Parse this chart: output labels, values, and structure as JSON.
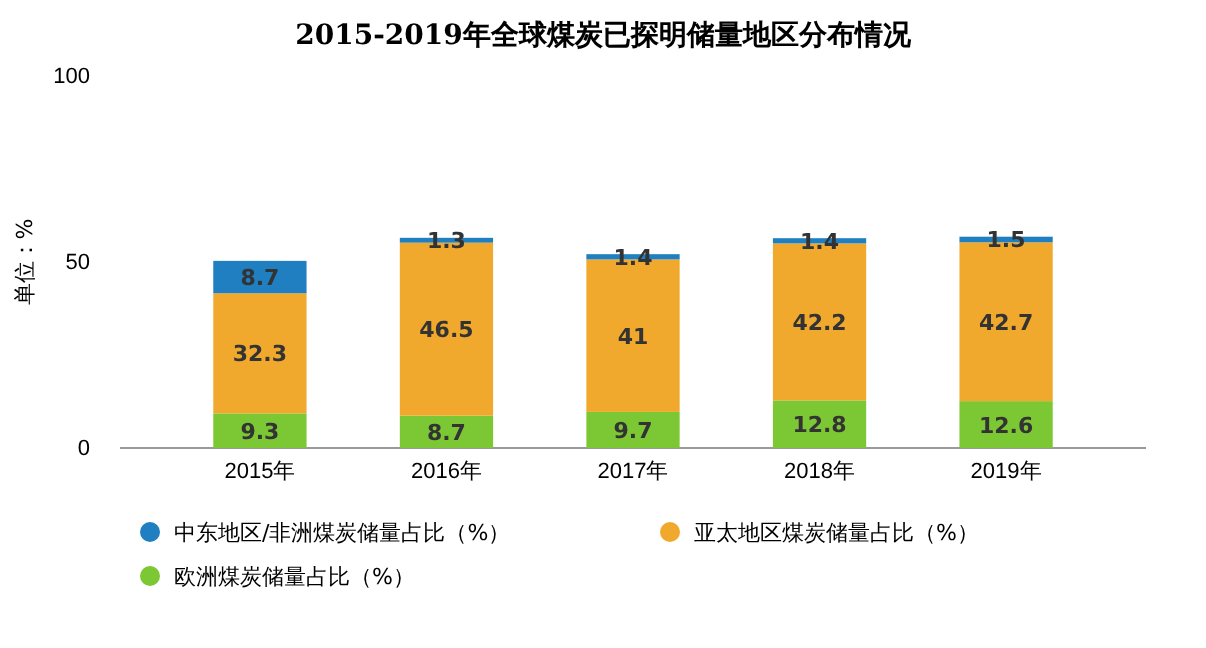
{
  "chart_data": {
    "type": "bar",
    "title": "2015-2019年全球煤炭已探明储量地区分布情况",
    "ylabel": "单位：%",
    "categories": [
      "2015年",
      "2016年",
      "2017年",
      "2018年",
      "2019年"
    ],
    "stacked": true,
    "series": [
      {
        "name": "欧洲煤炭储量占比（%）",
        "color": "#7cc834",
        "values": [
          9.3,
          8.7,
          9.7,
          12.8,
          12.6
        ]
      },
      {
        "name": "亚太地区煤炭储量占比（%）",
        "color": "#f0a92c",
        "values": [
          32.3,
          46.5,
          41,
          42.2,
          42.7
        ]
      },
      {
        "name": "中东地区/非洲煤炭储量占比（%）",
        "color": "#1f7fc1",
        "values": [
          8.7,
          1.3,
          1.4,
          1.4,
          1.5
        ]
      }
    ],
    "ylim": [
      0,
      100
    ],
    "yticks": [
      0,
      50,
      100
    ],
    "data_labels": true,
    "legend": "bottom"
  }
}
